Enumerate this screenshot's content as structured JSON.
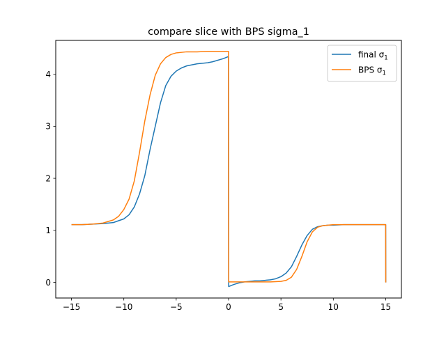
{
  "chart_data": {
    "type": "line",
    "title": "compare slice with BPS sigma_1",
    "xlabel": "",
    "ylabel": "",
    "xlim": [
      -16.5,
      16.5
    ],
    "ylim": [
      -0.3,
      4.65
    ],
    "xticks": [
      -15,
      -10,
      -5,
      0,
      5,
      10,
      15
    ],
    "yticks": [
      0,
      1,
      2,
      3,
      4
    ],
    "grid": false,
    "legend_position": "top-right",
    "series": [
      {
        "name": "final σ1",
        "color": "#1f77b4",
        "x": [
          -15,
          -14,
          -13,
          -12,
          -11,
          -10,
          -9.5,
          -9,
          -8.5,
          -8,
          -7.5,
          -7,
          -6.5,
          -6,
          -5.5,
          -5,
          -4.5,
          -4,
          -3.5,
          -3,
          -2.5,
          -2,
          -1.5,
          -1,
          -0.5,
          -0.01,
          0.01,
          0.5,
          1,
          1.5,
          2,
          2.5,
          3,
          3.5,
          4,
          4.5,
          5,
          5.5,
          6,
          6.5,
          7,
          7.5,
          8,
          8.5,
          9,
          9.5,
          10,
          11,
          12,
          13,
          14,
          15,
          15.01
        ],
        "y": [
          1.11,
          1.11,
          1.12,
          1.13,
          1.15,
          1.22,
          1.3,
          1.45,
          1.7,
          2.05,
          2.55,
          3.0,
          3.45,
          3.78,
          3.96,
          4.06,
          4.12,
          4.16,
          4.18,
          4.2,
          4.21,
          4.22,
          4.24,
          4.27,
          4.3,
          4.34,
          -0.08,
          -0.04,
          -0.01,
          0.01,
          0.02,
          0.03,
          0.03,
          0.04,
          0.05,
          0.07,
          0.11,
          0.18,
          0.3,
          0.5,
          0.72,
          0.9,
          1.02,
          1.07,
          1.09,
          1.1,
          1.1,
          1.11,
          1.11,
          1.11,
          1.11,
          1.11,
          0.0
        ]
      },
      {
        "name": "BPS σ1",
        "color": "#ff7f0e",
        "x": [
          -15,
          -14,
          -13,
          -12,
          -11,
          -10.5,
          -10,
          -9.5,
          -9,
          -8.5,
          -8,
          -7.5,
          -7,
          -6.5,
          -6,
          -5.5,
          -5,
          -4.5,
          -4,
          -3,
          -2,
          -1,
          -0.01,
          0.01,
          1,
          2,
          3,
          4,
          5,
          5.5,
          6,
          6.5,
          7,
          7.5,
          8,
          8.5,
          9,
          9.5,
          10,
          11,
          12,
          13,
          14,
          15,
          15.01
        ],
        "y": [
          1.11,
          1.11,
          1.12,
          1.14,
          1.2,
          1.27,
          1.4,
          1.6,
          1.95,
          2.5,
          3.1,
          3.6,
          3.98,
          4.2,
          4.32,
          4.38,
          4.41,
          4.42,
          4.43,
          4.43,
          4.44,
          4.44,
          4.44,
          0.01,
          0.01,
          0.01,
          0.01,
          0.01,
          0.02,
          0.04,
          0.1,
          0.25,
          0.5,
          0.78,
          0.97,
          1.06,
          1.09,
          1.1,
          1.11,
          1.11,
          1.11,
          1.11,
          1.11,
          1.11,
          0.0
        ]
      }
    ]
  }
}
